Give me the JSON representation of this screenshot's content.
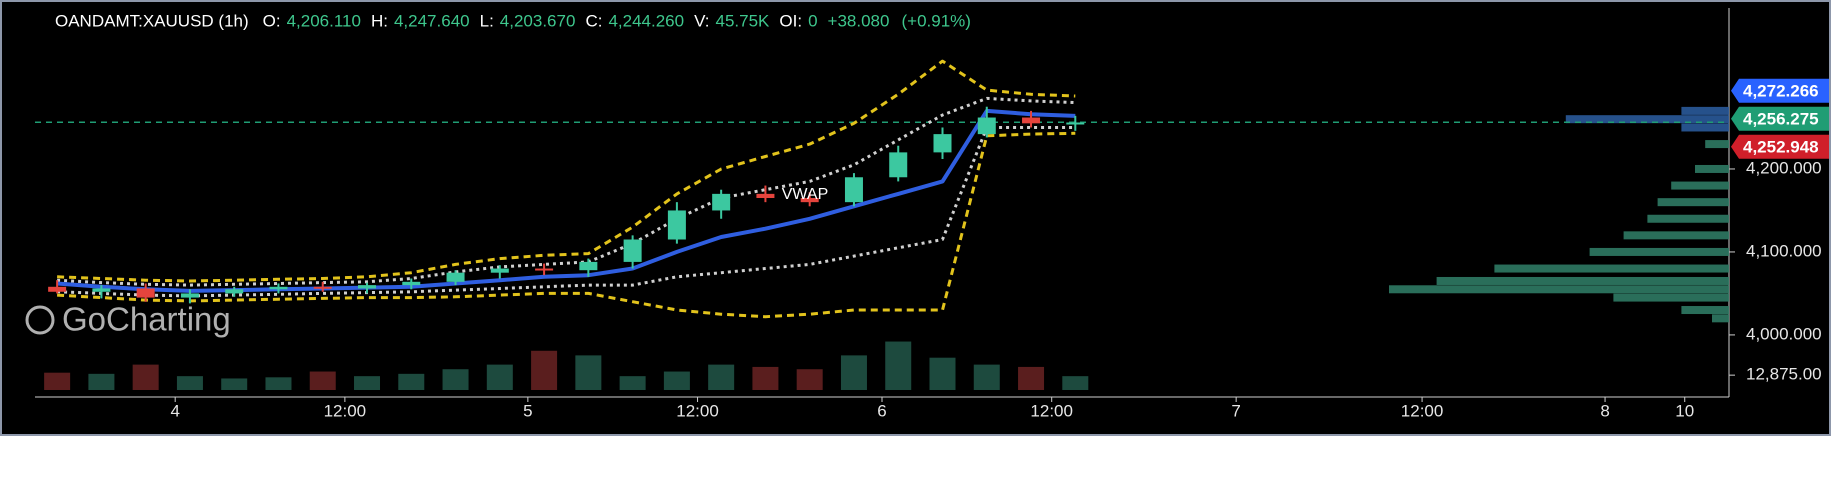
{
  "chart_data": {
    "type": "candlestick",
    "header": {
      "symbol": "OANDAMT:XAUUSD (1h)",
      "fields": [
        {
          "label": "O:",
          "value": "4,206.110"
        },
        {
          "label": "H:",
          "value": "4,247.640"
        },
        {
          "label": "L:",
          "value": "4,203.670"
        },
        {
          "label": "C:",
          "value": "4,244.260"
        },
        {
          "label": "V:",
          "value": "45.75K"
        },
        {
          "label": "OI:",
          "value": "0"
        }
      ],
      "change": "+38.080",
      "change_pct": "(+0.91%)"
    },
    "watermark": "GoCharting",
    "vwap_label": "VWAP",
    "xlim": [
      0,
      114.8
    ],
    "xticks": [
      {
        "value": 9.5,
        "label": "4"
      },
      {
        "value": 21.0,
        "label": "12:00"
      },
      {
        "value": 33.4,
        "label": "5"
      },
      {
        "value": 44.9,
        "label": "12:00"
      },
      {
        "value": 57.4,
        "label": "6"
      },
      {
        "value": 68.9,
        "label": "12:00"
      },
      {
        "value": 81.4,
        "label": "7"
      },
      {
        "value": 94.0,
        "label": "12:00"
      },
      {
        "value": 106.4,
        "label": "8"
      },
      {
        "value": 111.8,
        "label": "10"
      }
    ],
    "ylim": [
      3930,
      4394
    ],
    "yticks": [
      {
        "value": 4000,
        "label": "4,000.000"
      },
      {
        "value": 4100,
        "label": "4,100.000"
      },
      {
        "value": 4200,
        "label": "4,200.000"
      }
    ],
    "up_color": "#3cc8a0",
    "down_color": "#e5443d",
    "x": [
      1.5,
      4.5,
      7.5,
      10.5,
      13.5,
      16.5,
      19.5,
      22.5,
      25.5,
      28.5,
      31.5,
      34.5,
      37.5,
      40.5,
      43.5,
      46.5,
      49.5,
      52.5,
      55.5,
      58.5,
      61.5,
      64.5,
      67.5,
      70.5
    ],
    "open": [
      4058,
      4052,
      4056,
      4045,
      4050,
      4055,
      4058,
      4056,
      4060,
      4064,
      4075,
      4080,
      4078,
      4088,
      4115,
      4150,
      4170,
      4165,
      4160,
      4190,
      4220,
      4242,
      4262,
      4255
    ],
    "high": [
      4066,
      4060,
      4062,
      4055,
      4058,
      4062,
      4064,
      4063,
      4068,
      4078,
      4084,
      4086,
      4092,
      4120,
      4160,
      4175,
      4180,
      4172,
      4195,
      4228,
      4250,
      4275,
      4270,
      4264
    ],
    "low": [
      4050,
      4044,
      4040,
      4038,
      4046,
      4050,
      4052,
      4050,
      4055,
      4060,
      4068,
      4072,
      4070,
      4080,
      4110,
      4140,
      4160,
      4155,
      4155,
      4185,
      4212,
      4238,
      4250,
      4246
    ],
    "close": [
      4052,
      4056,
      4045,
      4050,
      4055,
      4058,
      4056,
      4060,
      4064,
      4075,
      4080,
      4078,
      4088,
      4115,
      4150,
      4170,
      4165,
      4160,
      4190,
      4220,
      4242,
      4262,
      4255,
      4256
    ],
    "lines": [
      {
        "color": "#e2c31c",
        "style": "dashed",
        "width": 3,
        "values": [
          4070,
          4068,
          4066,
          4065,
          4066,
          4067,
          4068,
          4070,
          4075,
          4085,
          4092,
          4096,
          4098,
          4130,
          4170,
          4200,
          4215,
          4230,
          4255,
          4290,
          4330,
          4295,
          4290,
          4288
        ]
      },
      {
        "color": "#e2c31c",
        "style": "dashed",
        "width": 3,
        "values": [
          4048,
          4045,
          4042,
          4041,
          4042,
          4043,
          4044,
          4045,
          4045,
          4046,
          4048,
          4050,
          4050,
          4040,
          4030,
          4025,
          4022,
          4025,
          4030,
          4030,
          4030,
          4240,
          4242,
          4243
        ]
      },
      {
        "color": "#d0d0d0",
        "style": "dotted",
        "width": 3,
        "values": [
          4066,
          4063,
          4061,
          4060,
          4061,
          4062,
          4063,
          4064,
          4068,
          4076,
          4082,
          4085,
          4088,
          4110,
          4140,
          4165,
          4175,
          4185,
          4205,
          4235,
          4265,
          4285,
          4282,
          4280
        ]
      },
      {
        "color": "#d0d0d0",
        "style": "dotted",
        "width": 3,
        "values": [
          4052,
          4050,
          4048,
          4047,
          4048,
          4049,
          4050,
          4051,
          4052,
          4054,
          4056,
          4058,
          4060,
          4060,
          4070,
          4075,
          4080,
          4085,
          4095,
          4105,
          4115,
          4250,
          4250,
          4250
        ]
      },
      {
        "color": "#2f5ee0",
        "style": "solid",
        "width": 4,
        "values": [
          4062,
          4058,
          4055,
          4053,
          4054,
          4055,
          4056,
          4057,
          4058,
          4062,
          4066,
          4070,
          4072,
          4080,
          4100,
          4118,
          4128,
          4140,
          4155,
          4170,
          4185,
          4270,
          4266,
          4264
        ]
      }
    ],
    "volume": {
      "up_color": "#1d4a3e",
      "down_color": "#5a1e1e",
      "ylim": [
        0,
        65000
      ],
      "yticks": [
        {
          "value": 12875,
          "label": "12,875.00"
        }
      ],
      "values": [
        15000,
        14000,
        22000,
        12000,
        10000,
        11000,
        16000,
        12000,
        14000,
        18000,
        22000,
        34000,
        30000,
        12000,
        16000,
        22000,
        20000,
        18000,
        30000,
        42000,
        28000,
        22000,
        20000,
        12000
      ]
    },
    "profile": {
      "xlim": [
        0,
        100
      ],
      "prices": [
        4270,
        4260,
        4250,
        4230,
        4200,
        4180,
        4160,
        4140,
        4120,
        4100,
        4080,
        4065,
        4055,
        4045,
        4030,
        4020
      ],
      "values": [
        14,
        48,
        14,
        7,
        10,
        17,
        21,
        24,
        31,
        41,
        69,
        86,
        100,
        34,
        14,
        5
      ],
      "colors": [
        "#2a5a9a",
        "#2a5a9a",
        "#2a5a9a",
        "#2f7a64",
        "#2f7a64",
        "#2f7a64",
        "#2f7a64",
        "#2f7a64",
        "#2f7a64",
        "#2f7a64",
        "#2f7a64",
        "#2f7a64",
        "#2f7a64",
        "#2f7a64",
        "#2f7a64",
        "#2f7a64"
      ]
    },
    "price_labels": [
      {
        "value": 4272.266,
        "label": "4,272.266",
        "color": "#2962ff",
        "line": false
      },
      {
        "value": 4256.275,
        "label": "4,256.275",
        "color": "#1f9d74",
        "line": true
      },
      {
        "value": 4252.948,
        "label": "4,252.948",
        "color": "#d01f2a",
        "line": false
      }
    ]
  }
}
